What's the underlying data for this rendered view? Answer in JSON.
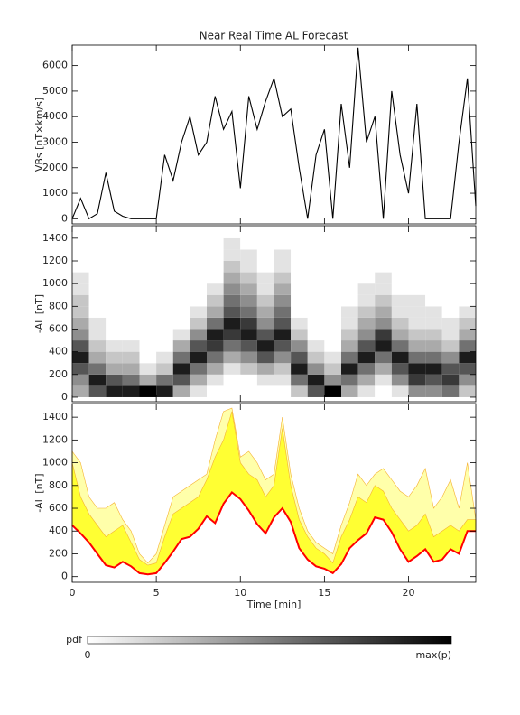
{
  "chart_data": [
    {
      "type": "line",
      "title": "Near Real Time AL Forecast",
      "ylabel": "VBs [nT×km/s]",
      "color": "#000000",
      "x": [
        0,
        0.5,
        1,
        1.5,
        2,
        2.5,
        3,
        3.5,
        4,
        4.5,
        5,
        5.5,
        6,
        6.5,
        7,
        7.5,
        8,
        8.5,
        9,
        9.5,
        10,
        10.5,
        11,
        11.5,
        12,
        12.5,
        13,
        13.5,
        14,
        14.5,
        15,
        15.5,
        16,
        16.5,
        17,
        17.5,
        18,
        18.5,
        19,
        19.5,
        20,
        20.5,
        21,
        21.5,
        22,
        22.5,
        23,
        23.5,
        24
      ],
      "values": [
        0,
        800,
        0,
        200,
        1800,
        300,
        100,
        0,
        0,
        0,
        0,
        2500,
        1500,
        3000,
        4000,
        2500,
        3000,
        4800,
        3500,
        4200,
        1200,
        4800,
        3500,
        4600,
        5500,
        4000,
        4300,
        2000,
        0,
        2500,
        3500,
        0,
        4500,
        2000,
        6700,
        3000,
        4000,
        0,
        5000,
        2500,
        1000,
        4500,
        0,
        0,
        0,
        0,
        3000,
        5500,
        500
      ],
      "xlim": [
        0,
        24
      ],
      "xticks": [
        0,
        5,
        10,
        15,
        20
      ],
      "ylim": [
        -200,
        6800
      ],
      "yticks": [
        0,
        1000,
        2000,
        3000,
        4000,
        5000,
        6000
      ]
    },
    {
      "type": "heatmap",
      "ylabel": "-AL [nT]",
      "xbins": [
        0,
        1,
        2,
        3,
        4,
        5,
        6,
        7,
        8,
        9,
        10,
        11,
        12,
        13,
        14,
        15,
        16,
        17,
        18,
        19,
        20,
        21,
        22,
        23,
        24
      ],
      "ybins": [
        0,
        100,
        200,
        300,
        400,
        500,
        600,
        700,
        800,
        900,
        1000,
        1100,
        1200,
        1300,
        1400,
        1500
      ],
      "z": [
        [
          3,
          4,
          6,
          8,
          6,
          4,
          3,
          2,
          2,
          1,
          1,
          0,
          0,
          0,
          0
        ],
        [
          6,
          8,
          5,
          3,
          2,
          1,
          1,
          0,
          0,
          0,
          0,
          0,
          0,
          0,
          0
        ],
        [
          8,
          6,
          3,
          2,
          1,
          0,
          0,
          0,
          0,
          0,
          0,
          0,
          0,
          0,
          0
        ],
        [
          8,
          5,
          3,
          2,
          1,
          0,
          0,
          0,
          0,
          0,
          0,
          0,
          0,
          0,
          0
        ],
        [
          9,
          3,
          1,
          0,
          0,
          0,
          0,
          0,
          0,
          0,
          0,
          0,
          0,
          0,
          0
        ],
        [
          8,
          5,
          2,
          1,
          0,
          0,
          0,
          0,
          0,
          0,
          0,
          0,
          0,
          0,
          0
        ],
        [
          3,
          6,
          8,
          5,
          3,
          1,
          0,
          0,
          0,
          0,
          0,
          0,
          0,
          0,
          0
        ],
        [
          1,
          3,
          5,
          8,
          6,
          4,
          2,
          1,
          0,
          0,
          0,
          0,
          0,
          0,
          0
        ],
        [
          0,
          1,
          3,
          5,
          7,
          8,
          5,
          3,
          2,
          1,
          0,
          0,
          0,
          0,
          0
        ],
        [
          0,
          0,
          1,
          3,
          5,
          7,
          8,
          6,
          5,
          4,
          3,
          2,
          1,
          1,
          0
        ],
        [
          0,
          0,
          2,
          4,
          6,
          8,
          7,
          5,
          4,
          3,
          2,
          1,
          1,
          0,
          0
        ],
        [
          0,
          1,
          3,
          6,
          8,
          6,
          4,
          3,
          2,
          1,
          1,
          0,
          0,
          0,
          0
        ],
        [
          0,
          1,
          2,
          4,
          6,
          8,
          6,
          5,
          4,
          3,
          2,
          1,
          1,
          0,
          0
        ],
        [
          2,
          5,
          8,
          6,
          4,
          2,
          1,
          0,
          0,
          0,
          0,
          0,
          0,
          0,
          0
        ],
        [
          6,
          8,
          4,
          2,
          1,
          0,
          0,
          0,
          0,
          0,
          0,
          0,
          0,
          0,
          0
        ],
        [
          9,
          4,
          2,
          1,
          0,
          0,
          0,
          0,
          0,
          0,
          0,
          0,
          0,
          0,
          0
        ],
        [
          3,
          5,
          8,
          5,
          3,
          2,
          1,
          1,
          0,
          0,
          0,
          0,
          0,
          0,
          0
        ],
        [
          1,
          3,
          5,
          8,
          6,
          4,
          3,
          2,
          1,
          1,
          0,
          0,
          0,
          0,
          0
        ],
        [
          0,
          1,
          3,
          5,
          8,
          7,
          4,
          3,
          2,
          1,
          1,
          0,
          0,
          0,
          0
        ],
        [
          1,
          4,
          6,
          8,
          5,
          3,
          2,
          1,
          1,
          0,
          0,
          0,
          0,
          0,
          0
        ],
        [
          4,
          7,
          8,
          5,
          3,
          2,
          1,
          1,
          1,
          0,
          0,
          0,
          0,
          0,
          0
        ],
        [
          4,
          6,
          8,
          5,
          3,
          2,
          1,
          1,
          0,
          0,
          0,
          0,
          0,
          0,
          0
        ],
        [
          5,
          7,
          6,
          4,
          2,
          1,
          1,
          0,
          0,
          0,
          0,
          0,
          0,
          0,
          0
        ],
        [
          2,
          4,
          6,
          8,
          5,
          3,
          2,
          1,
          0,
          0,
          0,
          0,
          0,
          0,
          0
        ]
      ],
      "zlim": [
        0,
        9
      ],
      "colorbar": {
        "label": "pdf",
        "min_label": "0",
        "max_label": "max(p)"
      },
      "xlim": [
        0,
        24
      ],
      "xticks": [
        0,
        5,
        10,
        15,
        20
      ],
      "ylim": [
        -40,
        1510
      ],
      "yticks": [
        0,
        200,
        400,
        600,
        800,
        1000,
        1200,
        1400
      ]
    },
    {
      "type": "area",
      "ylabel": "-AL [nT]",
      "xlabel": "Time [min]",
      "x": [
        0,
        0.5,
        1,
        1.5,
        2,
        2.5,
        3,
        3.5,
        4,
        4.5,
        5,
        5.5,
        6,
        6.5,
        7,
        7.5,
        8,
        8.5,
        9,
        9.5,
        10,
        10.5,
        11,
        11.5,
        12,
        12.5,
        13,
        13.5,
        14,
        14.5,
        15,
        15.5,
        16,
        16.5,
        17,
        17.5,
        18,
        18.5,
        19,
        19.5,
        20,
        20.5,
        21,
        21.5,
        22,
        22.5,
        23,
        23.5,
        24
      ],
      "series": [
        {
          "color": "#ff0000",
          "values": [
            450,
            380,
            300,
            200,
            100,
            80,
            130,
            90,
            30,
            20,
            30,
            120,
            220,
            330,
            350,
            420,
            530,
            470,
            640,
            740,
            680,
            580,
            460,
            380,
            520,
            600,
            480,
            250,
            150,
            90,
            70,
            30,
            110,
            250,
            320,
            380,
            520,
            500,
            390,
            240,
            130,
            180,
            240,
            130,
            150,
            240,
            200,
            400,
            400
          ]
        },
        {
          "color": "#ffff33",
          "values": [
            1000,
            700,
            550,
            450,
            350,
            400,
            450,
            300,
            150,
            100,
            120,
            350,
            550,
            600,
            650,
            700,
            850,
            1050,
            1200,
            1450,
            1000,
            900,
            850,
            700,
            800,
            1300,
            800,
            500,
            350,
            250,
            200,
            120,
            350,
            500,
            700,
            650,
            800,
            750,
            600,
            500,
            400,
            450,
            550,
            350,
            400,
            450,
            400,
            500,
            500
          ]
        },
        {
          "color": "#ffffaa",
          "values": [
            1100,
            1000,
            700,
            600,
            600,
            650,
            500,
            400,
            200,
            120,
            200,
            450,
            700,
            750,
            800,
            850,
            900,
            1200,
            1450,
            1480,
            1050,
            1100,
            1000,
            850,
            900,
            1400,
            900,
            600,
            400,
            300,
            250,
            200,
            450,
            650,
            900,
            800,
            900,
            950,
            850,
            750,
            700,
            800,
            950,
            600,
            700,
            850,
            600,
            1000,
            500
          ]
        }
      ],
      "xlim": [
        0,
        24
      ],
      "xticks": [
        0,
        5,
        10,
        15,
        20
      ],
      "ylim": [
        -50,
        1520
      ],
      "yticks": [
        0,
        200,
        400,
        600,
        800,
        1000,
        1200,
        1400
      ]
    }
  ]
}
